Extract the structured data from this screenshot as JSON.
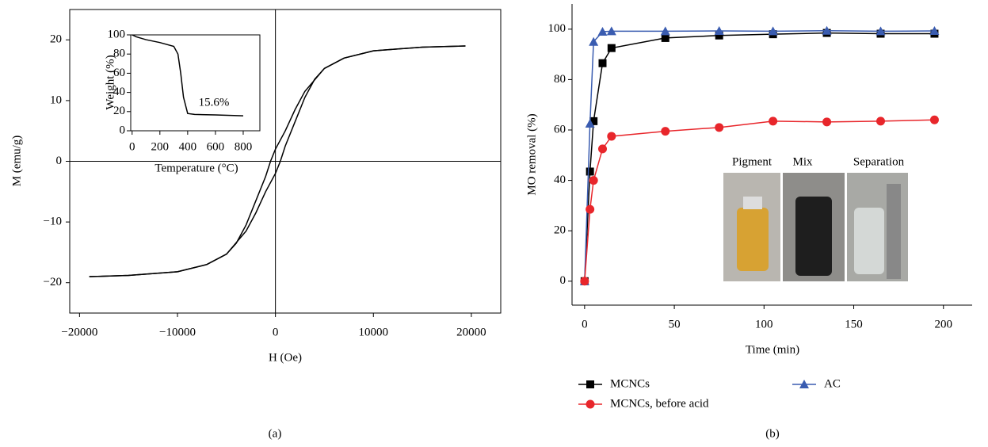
{
  "chart_data": [
    {
      "type": "line",
      "caption": "(a)",
      "xlabel": "H (Oe)",
      "ylabel": "M (emu/g)",
      "xlim": [
        -21000,
        23000
      ],
      "ylim": [
        -25,
        25
      ],
      "xticks": [
        {
          "value": -20000,
          "label": "−20000"
        },
        {
          "value": -10000,
          "label": "−10000"
        },
        0,
        10000,
        20000
      ],
      "yticks": [
        {
          "value": -20,
          "label": "−20"
        },
        {
          "value": -10,
          "label": "−10"
        },
        0,
        10,
        20
      ],
      "zero_lines": true,
      "series": [
        {
          "color": "#000000",
          "marker": "none",
          "x": [
            19400,
            15000,
            10000,
            7000,
            5000,
            3000,
            2000,
            1000,
            0,
            -500,
            -1000,
            -2000,
            -3000,
            -4000,
            -5000,
            -7000,
            -10000,
            -15000,
            -19000
          ],
          "values": [
            19,
            18.8,
            18.2,
            17,
            15.3,
            11.5,
            8.5,
            5,
            2,
            0,
            -2.5,
            -6.5,
            -10.5,
            -13.5,
            -15.3,
            -17,
            -18.2,
            -18.8,
            -19
          ]
        },
        {
          "color": "#000000",
          "marker": "none",
          "x": [
            -19000,
            -15000,
            -10000,
            -7000,
            -5000,
            -3000,
            -2000,
            -1000,
            0,
            500,
            1000,
            2000,
            3000,
            4000,
            5000,
            7000,
            10000,
            15000,
            19400
          ],
          "values": [
            -19,
            -18.8,
            -18.2,
            -17,
            -15.3,
            -11.5,
            -8.5,
            -5,
            -2,
            0,
            2.5,
            6.5,
            10.5,
            13.5,
            15.3,
            17,
            18.2,
            18.8,
            19
          ]
        }
      ]
    },
    {
      "type": "line",
      "xlabel": "Temperature (°C)",
      "ylabel": "Weight (%)",
      "xlim": [
        -10,
        920
      ],
      "ylim": [
        0,
        100
      ],
      "xticks": [
        0,
        200,
        400,
        600,
        800
      ],
      "yticks": [
        0,
        20,
        40,
        60,
        80,
        100
      ],
      "annotations": [
        "15.6%"
      ],
      "series": [
        {
          "color": "#000000",
          "marker": "none",
          "x": [
            0,
            30,
            100,
            200,
            300,
            330,
            350,
            370,
            400,
            450,
            600,
            800
          ],
          "values": [
            100,
            98,
            95,
            92,
            88,
            80,
            60,
            35,
            18,
            17,
            16.5,
            15.6
          ]
        }
      ]
    },
    {
      "type": "line",
      "caption": "(b)",
      "xlabel": "Time (min)",
      "ylabel": "MO removal (%)",
      "xlim": [
        -7,
        216
      ],
      "ylim": [
        -9.5,
        110
      ],
      "xticks": [
        0,
        50,
        100,
        150,
        200
      ],
      "yticks": [
        0,
        20,
        40,
        60,
        80,
        100
      ],
      "inset_labels": [
        "Pigment",
        "Mix",
        "Separation"
      ],
      "x": [
        0,
        3,
        5,
        10,
        15,
        45,
        75,
        105,
        135,
        165,
        195
      ],
      "series": [
        {
          "name": "MCNCs",
          "color": "#000000",
          "marker": "square",
          "values": [
            0,
            43.5,
            63.5,
            86.5,
            92.5,
            96.5,
            97.5,
            98,
            98.5,
            98.2,
            98.2
          ]
        },
        {
          "name": "AC",
          "color": "#3a5cb0",
          "marker": "triangle",
          "values": [
            0,
            62.5,
            95,
            99,
            99.2,
            99.2,
            99.3,
            99.2,
            99.4,
            99.2,
            99.3
          ]
        },
        {
          "name": "MCNCs, before acid",
          "color": "#e8262b",
          "marker": "circle",
          "values": [
            0,
            28.5,
            40,
            52.5,
            57.5,
            59.5,
            61,
            63.5,
            63.2,
            63.5,
            64
          ]
        }
      ]
    }
  ]
}
